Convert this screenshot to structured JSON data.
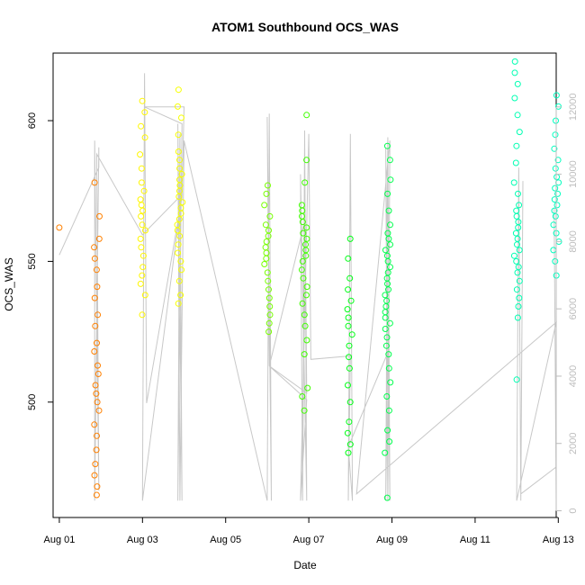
{
  "chart_data": {
    "type": "scatter",
    "title": "ATOM1 Southbound OCS_WAS",
    "xlabel": "Date",
    "ylabel": "OCS_WAS",
    "x_unit": "date (August)",
    "xlim": [
      0.85,
      12.95
    ],
    "ylim": [
      459,
      624
    ],
    "y2lim": [
      -200,
      13600
    ],
    "x_ticks": [
      {
        "x": 1,
        "label": "Aug 01"
      },
      {
        "x": 3,
        "label": "Aug 03"
      },
      {
        "x": 5,
        "label": "Aug 05"
      },
      {
        "x": 7,
        "label": "Aug 07"
      },
      {
        "x": 9,
        "label": "Aug 09"
      },
      {
        "x": 11,
        "label": "Aug 11"
      },
      {
        "x": 13,
        "label": "Aug 13"
      }
    ],
    "y_ticks": [
      500,
      550,
      600
    ],
    "y2_ticks": [
      0,
      2000,
      4000,
      6000,
      8000,
      10000,
      12000
    ],
    "grid": false,
    "legend": "none",
    "colors": {
      "secondary_line": "#c8c8c8",
      "axis": "#000000",
      "secondary_axis": "#bdbdbd",
      "points_start": "#ff8c00",
      "points_end": "#00ffc0"
    },
    "series": [
      {
        "role": "points",
        "clusters": [
          {
            "x": 1.0,
            "values": [
              562
            ],
            "hue": 30
          },
          {
            "x": 1.9,
            "values": [
              467,
              470,
              474,
              478,
              483,
              488,
              492,
              497,
              500,
              503,
              506,
              510,
              513,
              518,
              521,
              527,
              531,
              537,
              541,
              547,
              551,
              555,
              558,
              566,
              578
            ],
            "hue": 30
          },
          {
            "x": 3.0,
            "values": [
              531,
              538,
              542,
              545,
              548,
              552,
              555,
              558,
              561,
              563,
              566,
              568,
              570,
              572,
              575,
              578,
              583,
              588,
              594,
              598,
              603,
              607
            ],
            "hue": 58
          },
          {
            "x": 3.9,
            "values": [
              535,
              538,
              543,
              547,
              550,
              553,
              556,
              559,
              561,
              563,
              565,
              567,
              569,
              571,
              573,
              575,
              577,
              579,
              581,
              583,
              586,
              589,
              595,
              601,
              605,
              611
            ],
            "hue": 62
          },
          {
            "x": 6.0,
            "values": [
              525,
              528,
              531,
              534,
              537,
              540,
              543,
              546,
              549,
              551,
              553,
              555,
              557,
              559,
              561,
              563,
              566,
              570,
              574,
              577
            ],
            "hue": 92
          },
          {
            "x": 6.9,
            "values": [
              497,
              502,
              505,
              517,
              522,
              527,
              531,
              535,
              538,
              541,
              544,
              547,
              550,
              552,
              554,
              556,
              558,
              560,
              562,
              564,
              566,
              568,
              570,
              578,
              586,
              602
            ],
            "hue": 105
          },
          {
            "x": 8.0,
            "values": [
              482,
              485,
              489,
              493,
              500,
              506,
              512,
              516,
              520,
              524,
              527,
              530,
              533,
              536,
              540,
              544,
              551,
              558
            ],
            "hue": 125
          },
          {
            "x": 8.9,
            "values": [
              466,
              482,
              486,
              490,
              497,
              502,
              507,
              512,
              517,
              520,
              523,
              526,
              528,
              530,
              532,
              534,
              536,
              538,
              540,
              542,
              544,
              546,
              548,
              550,
              552,
              554,
              556,
              558,
              560,
              563,
              568,
              574,
              579,
              586,
              591
            ],
            "hue": 138
          },
          {
            "x": 12.0,
            "values": [
              508,
              530,
              534,
              537,
              540,
              543,
              546,
              548,
              550,
              552,
              554,
              556,
              558,
              560,
              562,
              564,
              566,
              568,
              570,
              574,
              578,
              585,
              591,
              596,
              602,
              608,
              613,
              617,
              621
            ],
            "hue": 162
          },
          {
            "x": 12.95,
            "values": [
              545,
              550,
              554,
              557,
              560,
              563,
              566,
              568,
              570,
              572,
              574,
              576,
              578,
              580,
              583,
              586,
              590,
              595,
              600,
              605,
              609
            ],
            "hue": 165
          }
        ]
      },
      {
        "role": "secondary-line",
        "axis": "right",
        "path": [
          [
            1.0,
            7600
          ],
          [
            1.95,
            10200
          ],
          [
            1.95,
            10800
          ],
          [
            1.85,
            300
          ],
          [
            1.85,
            11000
          ],
          [
            1.95,
            600
          ],
          [
            1.9,
            10600
          ],
          [
            3.0,
            8200
          ],
          [
            3.95,
            9400
          ],
          [
            3.0,
            300
          ],
          [
            3.05,
            13000
          ],
          [
            3.1,
            3200
          ],
          [
            3.95,
            9300
          ],
          [
            4.0,
            12000
          ],
          [
            3.05,
            12000
          ],
          [
            3.95,
            11500
          ],
          [
            3.85,
            300
          ],
          [
            3.9,
            11200
          ],
          [
            3.95,
            300
          ],
          [
            3.85,
            11500
          ],
          [
            3.9,
            300
          ],
          [
            4.0,
            11000
          ],
          [
            6.0,
            300
          ],
          [
            6.05,
            11800
          ],
          [
            6.1,
            300
          ],
          [
            6.0,
            11700
          ],
          [
            6.05,
            4300
          ],
          [
            6.9,
            8600
          ],
          [
            6.85,
            300
          ],
          [
            6.9,
            11300
          ],
          [
            6.95,
            300
          ],
          [
            6.8,
            10000
          ],
          [
            6.85,
            300
          ],
          [
            6.9,
            10500
          ],
          [
            6.95,
            3500
          ],
          [
            6.05,
            4300
          ],
          [
            6.95,
            3300
          ],
          [
            6.8,
            300
          ],
          [
            7.0,
            11200
          ],
          [
            7.05,
            4500
          ],
          [
            8.0,
            4600
          ],
          [
            7.95,
            300
          ],
          [
            8.0,
            11200
          ],
          [
            8.05,
            300
          ],
          [
            7.95,
            1900
          ],
          [
            8.9,
            4700
          ],
          [
            8.85,
            300
          ],
          [
            8.9,
            11100
          ],
          [
            8.95,
            300
          ],
          [
            8.85,
            10800
          ],
          [
            8.9,
            300
          ],
          [
            8.95,
            11000
          ],
          [
            8.15,
            500
          ],
          [
            12.95,
            5600
          ],
          [
            12.0,
            300
          ],
          [
            12.05,
            10200
          ],
          [
            12.1,
            300
          ],
          [
            12.15,
            9800
          ],
          [
            12.1,
            500
          ],
          [
            12.95,
            1300
          ],
          [
            12.95,
            300
          ],
          [
            12.9,
            9000
          ]
        ]
      }
    ]
  }
}
